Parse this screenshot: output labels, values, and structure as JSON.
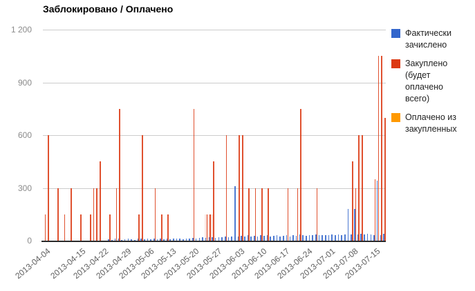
{
  "title": "Заблокировано / Оплачено",
  "legend": {
    "items": [
      {
        "label": "Фактически зачислено",
        "color": "#3366CC"
      },
      {
        "label": "Закуплено (будет оплачено всего)",
        "color": "#DC3912"
      },
      {
        "label": "Оплачено из закупленных",
        "color": "#FF9900"
      }
    ]
  },
  "chart_data": {
    "type": "bar",
    "title": "Заблокировано / Оплачено",
    "grid": true,
    "legend_position": "right",
    "ylim": [
      0,
      1200
    ],
    "yticks": [
      0,
      300,
      600,
      900,
      1200
    ],
    "ytick_labels": [
      "0",
      "300",
      "600",
      "900",
      "1 200"
    ],
    "xtick_labels": [
      {
        "label": "2013-04-04",
        "index": 0
      },
      {
        "label": "2013-04-15",
        "index": 11
      },
      {
        "label": "2013-04-22",
        "index": 18
      },
      {
        "label": "2013-04-29",
        "index": 25
      },
      {
        "label": "2013-05-06",
        "index": 32
      },
      {
        "label": "2013-05-13",
        "index": 39
      },
      {
        "label": "2013-05-20",
        "index": 46
      },
      {
        "label": "2013-05-27",
        "index": 53
      },
      {
        "label": "2013-06-03",
        "index": 60
      },
      {
        "label": "2013-06-10",
        "index": 67
      },
      {
        "label": "2013-06-17",
        "index": 74
      },
      {
        "label": "2013-06-24",
        "index": 81
      },
      {
        "label": "2013-07-01",
        "index": 88
      },
      {
        "label": "2013-07-08",
        "index": 95
      },
      {
        "label": "2013-07-15",
        "index": 102
      }
    ],
    "x": [
      "2013-04-04",
      "2013-04-05",
      "2013-04-06",
      "2013-04-07",
      "2013-04-08",
      "2013-04-09",
      "2013-04-10",
      "2013-04-11",
      "2013-04-12",
      "2013-04-13",
      "2013-04-14",
      "2013-04-15",
      "2013-04-16",
      "2013-04-17",
      "2013-04-18",
      "2013-04-19",
      "2013-04-20",
      "2013-04-21",
      "2013-04-22",
      "2013-04-23",
      "2013-04-24",
      "2013-04-25",
      "2013-04-26",
      "2013-04-27",
      "2013-04-28",
      "2013-04-29",
      "2013-04-30",
      "2013-05-01",
      "2013-05-02",
      "2013-05-03",
      "2013-05-04",
      "2013-05-05",
      "2013-05-06",
      "2013-05-07",
      "2013-05-08",
      "2013-05-09",
      "2013-05-10",
      "2013-05-11",
      "2013-05-12",
      "2013-05-13",
      "2013-05-14",
      "2013-05-15",
      "2013-05-16",
      "2013-05-17",
      "2013-05-18",
      "2013-05-19",
      "2013-05-20",
      "2013-05-21",
      "2013-05-22",
      "2013-05-23",
      "2013-05-24",
      "2013-05-25",
      "2013-05-26",
      "2013-05-27",
      "2013-05-28",
      "2013-05-29",
      "2013-05-30",
      "2013-05-31",
      "2013-06-01",
      "2013-06-02",
      "2013-06-03",
      "2013-06-04",
      "2013-06-05",
      "2013-06-06",
      "2013-06-07",
      "2013-06-08",
      "2013-06-09",
      "2013-06-10",
      "2013-06-11",
      "2013-06-12",
      "2013-06-13",
      "2013-06-14",
      "2013-06-15",
      "2013-06-16",
      "2013-06-17",
      "2013-06-18",
      "2013-06-19",
      "2013-06-20",
      "2013-06-21",
      "2013-06-22",
      "2013-06-23",
      "2013-06-24",
      "2013-06-25",
      "2013-06-26",
      "2013-06-27",
      "2013-06-28",
      "2013-06-29",
      "2013-06-30",
      "2013-07-01",
      "2013-07-02",
      "2013-07-03",
      "2013-07-04",
      "2013-07-05",
      "2013-07-06",
      "2013-07-07",
      "2013-07-08",
      "2013-07-09",
      "2013-07-10",
      "2013-07-11",
      "2013-07-12",
      "2013-07-13",
      "2013-07-14",
      "2013-07-15",
      "2013-07-16",
      "2013-07-17",
      "2013-07-18"
    ],
    "series": [
      {
        "name": "Фактически зачислено",
        "key": "fact",
        "color": "#3366CC",
        "values": [
          0,
          0,
          0,
          0,
          0,
          0,
          0,
          0,
          0,
          0,
          0,
          0,
          0,
          0,
          0,
          0,
          0,
          0,
          0,
          0,
          8,
          6,
          10,
          12,
          6,
          8,
          10,
          8,
          6,
          10,
          12,
          8,
          10,
          8,
          12,
          8,
          10,
          8,
          10,
          8,
          10,
          12,
          10,
          8,
          10,
          12,
          15,
          12,
          15,
          18,
          15,
          18,
          20,
          15,
          18,
          20,
          25,
          20,
          22,
          310,
          25,
          28,
          25,
          30,
          25,
          28,
          25,
          30,
          28,
          32,
          25,
          28,
          30,
          25,
          28,
          30,
          25,
          30,
          28,
          35,
          30,
          28,
          32,
          30,
          35,
          30,
          32,
          30,
          32,
          35,
          30,
          35,
          32,
          35,
          180,
          35,
          180,
          35,
          40,
          35,
          38,
          35,
          30,
          340,
          32,
          38
        ]
      },
      {
        "name": "Закуплено (будет оплачено всего)",
        "key": "purchased",
        "color": "#DC3912",
        "values": [
          150,
          600,
          0,
          0,
          300,
          0,
          150,
          0,
          300,
          0,
          0,
          150,
          0,
          0,
          150,
          300,
          300,
          450,
          0,
          0,
          150,
          0,
          300,
          750,
          0,
          0,
          0,
          0,
          0,
          150,
          600,
          0,
          0,
          0,
          300,
          0,
          150,
          0,
          150,
          0,
          0,
          0,
          0,
          0,
          0,
          0,
          750,
          0,
          0,
          0,
          150,
          150,
          450,
          0,
          0,
          0,
          600,
          0,
          0,
          0,
          600,
          600,
          0,
          300,
          0,
          300,
          0,
          300,
          0,
          300,
          0,
          0,
          0,
          0,
          0,
          300,
          0,
          0,
          300,
          750,
          0,
          0,
          0,
          0,
          300,
          0,
          0,
          0,
          0,
          0,
          0,
          0,
          0,
          0,
          0,
          450,
          300,
          600,
          600,
          0,
          0,
          0,
          350,
          1050,
          1050,
          700
        ]
      },
      {
        "name": "Оплачено из закупленных",
        "key": "paid",
        "color": "#FF9900",
        "values": [
          0,
          0,
          0,
          0,
          0,
          0,
          0,
          0,
          0,
          0,
          0,
          0,
          0,
          0,
          0,
          0,
          0,
          0,
          0,
          0,
          0,
          0,
          0,
          0,
          0,
          0,
          0,
          0,
          0,
          0,
          0,
          0,
          0,
          0,
          0,
          0,
          0,
          0,
          0,
          0,
          0,
          0,
          0,
          0,
          0,
          0,
          0,
          0,
          0,
          0,
          0,
          0,
          0,
          0,
          0,
          0,
          0,
          0,
          0,
          0,
          0,
          0,
          0,
          0,
          0,
          0,
          0,
          0,
          0,
          0,
          0,
          0,
          0,
          0,
          0,
          0,
          0,
          0,
          0,
          0,
          0,
          0,
          0,
          0,
          0,
          0,
          0,
          0,
          0,
          0,
          0,
          0,
          0,
          0,
          0,
          0,
          0,
          0,
          0,
          0,
          0,
          0,
          0,
          0,
          0,
          0
        ]
      }
    ],
    "highlight_band": {
      "start_index": 50,
      "end_index": 52,
      "height_value": 150,
      "color": "rgba(220,57,18,0.13)"
    }
  }
}
